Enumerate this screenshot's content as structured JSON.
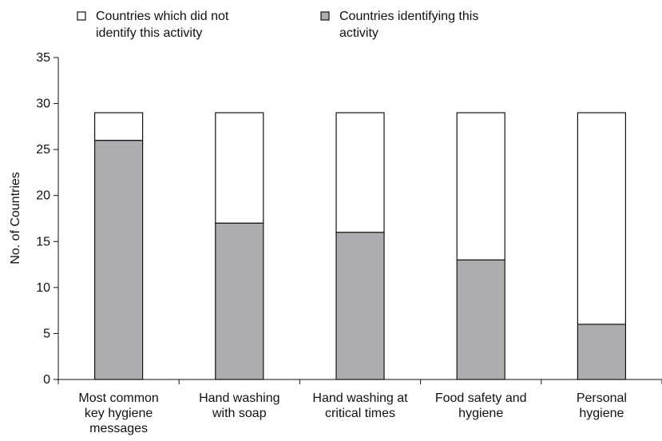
{
  "chart_data": {
    "type": "bar",
    "stacked": true,
    "title": "",
    "xlabel": "",
    "ylabel": "No. of Countries",
    "ylim": [
      0,
      35
    ],
    "yticks": [
      0,
      5,
      10,
      15,
      20,
      25,
      30,
      35
    ],
    "grid": false,
    "legend_position": "top",
    "categories": [
      [
        "Most common",
        "key hygiene",
        "messages"
      ],
      [
        "Hand washing",
        "with soap"
      ],
      [
        "Hand washing at",
        "critical times"
      ],
      [
        "Food safety and",
        "hygiene"
      ],
      [
        "Personal",
        "hygiene"
      ]
    ],
    "series": [
      {
        "name": [
          "Countries identifying this",
          "activity"
        ],
        "values": [
          26,
          17,
          16,
          13,
          6
        ],
        "color": "#adadb1"
      },
      {
        "name": [
          "Countries which did not",
          "identify this activity"
        ],
        "values": [
          3,
          12,
          13,
          16,
          23
        ],
        "color": "#ffffff"
      }
    ]
  }
}
